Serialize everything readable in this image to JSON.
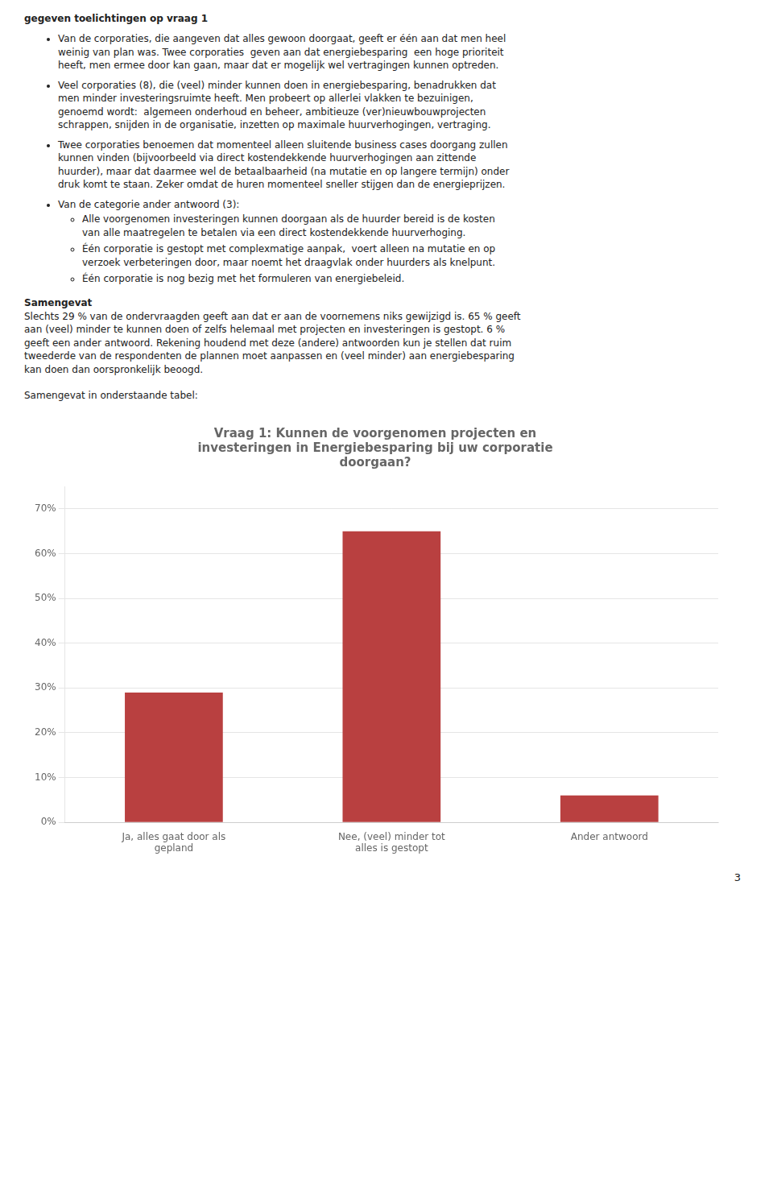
{
  "chart_data": {
    "type": "bar",
    "title": [
      "Vraag 1: Kunnen de voorgenomen projecten en",
      "investeringen in Energiebesparing bij uw corporatie",
      "doorgaan?"
    ],
    "categories": [
      "Ja, alles gaat door als\ngepland",
      "Nee, (veel) minder tot\nalles is gestopt",
      "Ander antwoord"
    ],
    "values": [
      0.29,
      0.65,
      0.06
    ],
    "color": "#B94040",
    "ylim": [
      0,
      0.75
    ],
    "yticks": [
      {
        "value": 0.0,
        "label": "0%"
      },
      {
        "value": 0.1,
        "label": "10%"
      },
      {
        "value": 0.2,
        "label": "20%"
      },
      {
        "value": 0.3,
        "label": "30%"
      },
      {
        "value": 0.4,
        "label": "40%"
      },
      {
        "value": 0.5,
        "label": "50%"
      },
      {
        "value": 0.6,
        "label": "60%"
      },
      {
        "value": 0.7,
        "label": "70%"
      }
    ],
    "grid": true,
    "annotations": [
      "gegeven toelichtingen op vraag 1",
      [
        [
          "Van de corporaties, die aangeven dat alles gewoon doorgaat, geeft er één aan dat men heel",
          "weinig van plan was. Twee corporaties  geven aan dat energiebesparing  een hoge prioriteit",
          "heeft, men ermee door kan gaan, maar dat er mogelijk wel vertragingen kunnen optreden."
        ],
        [
          "Veel corporaties (8), die (veel) minder kunnen doen in energiebesparing, benadrukken dat",
          "men minder investeringsruimte heeft. Men probeert op allerlei vlakken te bezuinigen,",
          "genoemd wordt:  algemeen onderhoud en beheer, ambitieuze (ver)nieuwbouwprojecten",
          "schrappen, snijden in de organisatie, inzetten op maximale huurverhogingen, vertraging."
        ],
        [
          "Twee corporaties benoemen dat momenteel alleen sluitende business cases doorgang zullen",
          "kunnen vinden (bijvoorbeeld via direct kostendekkende huurverhogingen aan zittende",
          "huurder), maar dat daarmee wel de betaalbaarheid (na mutatie en op langere termijn) onder",
          "druk komt te staan. Zeker omdat de huren momenteel sneller stijgen dan de energieprijzen."
        ],
        [
          "Van de categorie ander antwoord (3):",
          [
            [
              "Alle voorgenomen investeringen kunnen doorgaan als de huurder bereid is de kosten",
              "van alle maatregelen te betalen via een direct kostendekkende huurverhoging."
            ],
            [
              "Één corporatie is gestopt met complexmatige aanpak,  voert alleen na mutatie en op",
              "verzoek verbeteringen door, maar noemt het draagvlak onder huurders als knelpunt."
            ],
            [
              "Één corporatie is nog bezig met het formuleren van energiebeleid."
            ]
          ]
        ]
      ],
      "Samengevat",
      [
        "Slechts 29 % van de ondervraagden geeft aan dat er aan de voornemens niks gewijzigd is. 65 % geeft",
        "aan (veel) minder te kunnen doen of zelfs helemaal met projecten en investeringen is gestopt. 6 %",
        "geeft een ander antwoord. Rekening houdend met deze (andere) antwoorden kun je stellen dat ruim",
        "tweederde van de respondenten de plannen moet aanpassen en (veel minder) aan energiebesparing",
        "kan doen dan oorspronkelijk beoogd."
      ],
      "Samengevat in onderstaande tabel:",
      "3"
    ]
  }
}
